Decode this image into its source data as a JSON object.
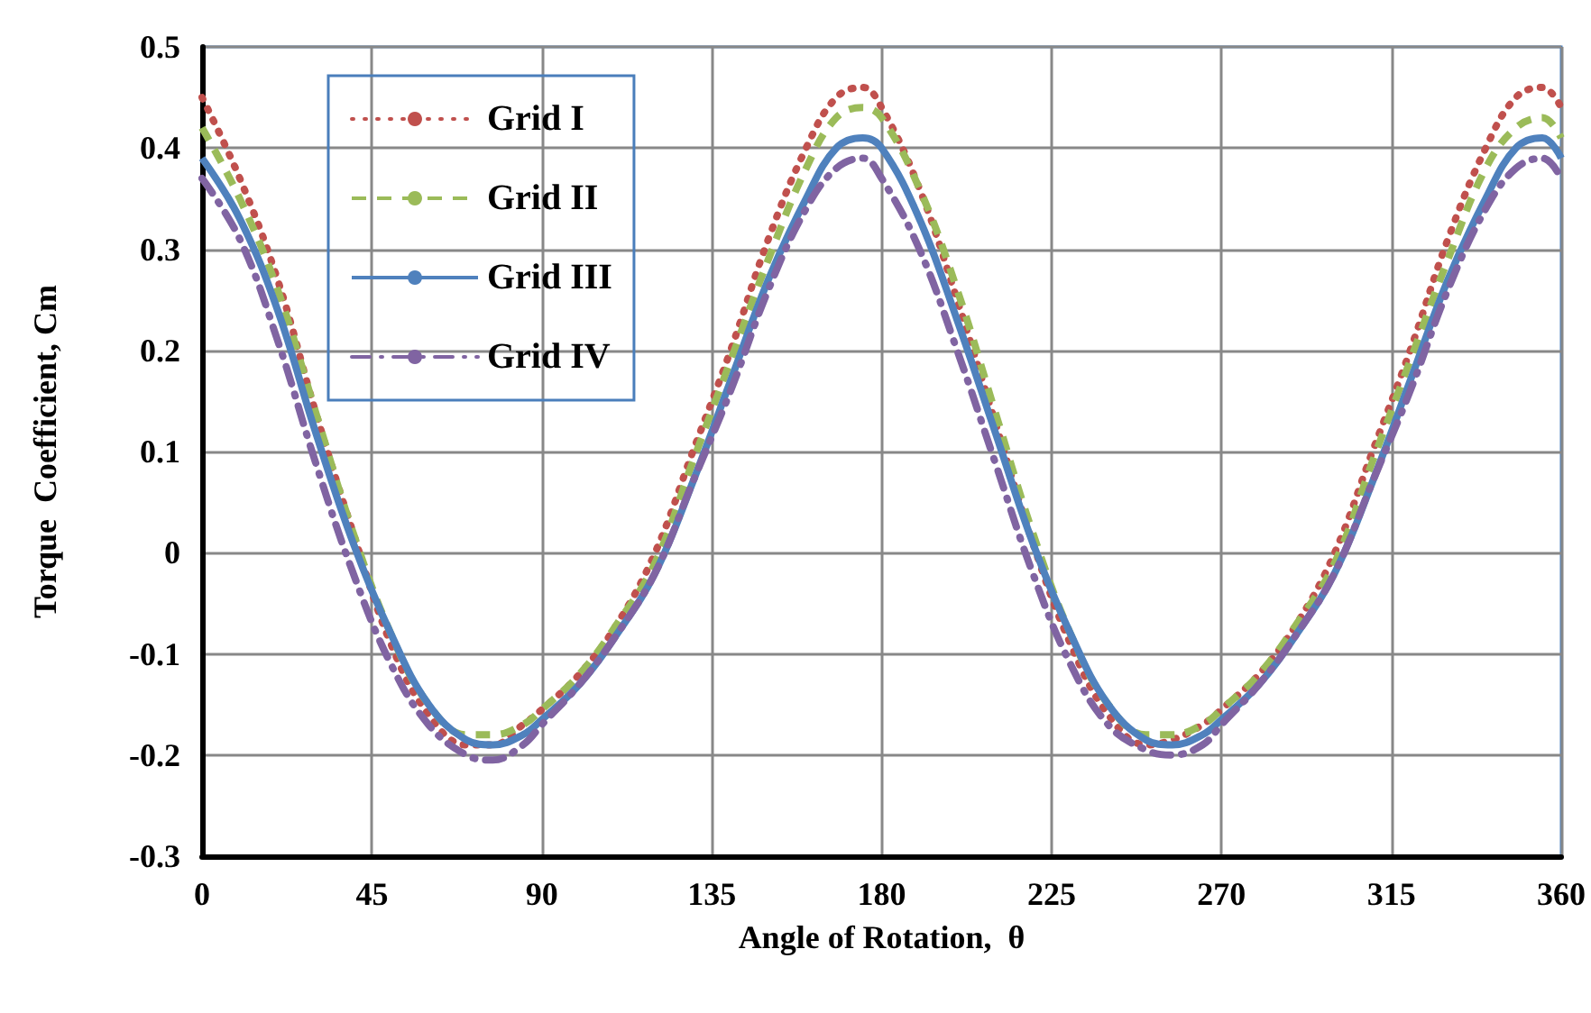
{
  "chart_data": {
    "type": "line",
    "xlabel": "Angle of Rotation,  θ",
    "ylabel": "Torque  Coefficient, Cm",
    "x": [
      0,
      10,
      20,
      30,
      40,
      50,
      60,
      70,
      77,
      85,
      90,
      100,
      110,
      120,
      130,
      140,
      150,
      160,
      168,
      175,
      180,
      190,
      200,
      210,
      220,
      230,
      240,
      250,
      257,
      265,
      270,
      280,
      290,
      300,
      310,
      320,
      330,
      340,
      348,
      355,
      360
    ],
    "series": [
      {
        "name": "Grid I",
        "color": "#c0504d",
        "line_style": "dotted",
        "values": [
          0.45,
          0.37,
          0.27,
          0.14,
          0.02,
          -0.09,
          -0.16,
          -0.19,
          -0.19,
          -0.17,
          -0.155,
          -0.12,
          -0.07,
          0.0,
          0.1,
          0.2,
          0.31,
          0.4,
          0.45,
          0.46,
          0.44,
          0.36,
          0.25,
          0.13,
          0.01,
          -0.09,
          -0.16,
          -0.19,
          -0.185,
          -0.17,
          -0.155,
          -0.12,
          -0.07,
          0.0,
          0.1,
          0.2,
          0.31,
          0.4,
          0.45,
          0.46,
          0.44
        ]
      },
      {
        "name": "Grid II",
        "color": "#9bbb59",
        "line_style": "dashed",
        "values": [
          0.42,
          0.35,
          0.26,
          0.14,
          0.02,
          -0.08,
          -0.15,
          -0.18,
          -0.18,
          -0.17,
          -0.155,
          -0.12,
          -0.07,
          -0.01,
          0.09,
          0.19,
          0.29,
          0.38,
          0.43,
          0.44,
          0.43,
          0.36,
          0.26,
          0.14,
          0.02,
          -0.08,
          -0.15,
          -0.18,
          -0.18,
          -0.17,
          -0.155,
          -0.12,
          -0.07,
          -0.01,
          0.09,
          0.19,
          0.29,
          0.38,
          0.42,
          0.43,
          0.41
        ]
      },
      {
        "name": "Grid III",
        "color": "#4f81bd",
        "line_style": "solid",
        "values": [
          0.39,
          0.33,
          0.24,
          0.12,
          0.01,
          -0.08,
          -0.15,
          -0.185,
          -0.19,
          -0.18,
          -0.165,
          -0.13,
          -0.08,
          -0.02,
          0.07,
          0.17,
          0.27,
          0.35,
          0.4,
          0.41,
          0.4,
          0.33,
          0.23,
          0.12,
          0.01,
          -0.08,
          -0.15,
          -0.185,
          -0.19,
          -0.18,
          -0.165,
          -0.13,
          -0.08,
          -0.02,
          0.07,
          0.17,
          0.27,
          0.35,
          0.4,
          0.41,
          0.39
        ]
      },
      {
        "name": "Grid IV",
        "color": "#8064a2",
        "line_style": "dashdot",
        "values": [
          0.37,
          0.31,
          0.21,
          0.09,
          -0.02,
          -0.11,
          -0.17,
          -0.2,
          -0.205,
          -0.19,
          -0.17,
          -0.13,
          -0.08,
          -0.02,
          0.07,
          0.16,
          0.26,
          0.34,
          0.38,
          0.39,
          0.37,
          0.3,
          0.2,
          0.09,
          -0.02,
          -0.11,
          -0.17,
          -0.195,
          -0.2,
          -0.19,
          -0.17,
          -0.13,
          -0.08,
          -0.02,
          0.07,
          0.16,
          0.26,
          0.34,
          0.38,
          0.39,
          0.37
        ]
      }
    ],
    "xlim": [
      0,
      360
    ],
    "xticks": [
      0,
      45,
      90,
      135,
      180,
      225,
      270,
      315,
      360
    ],
    "ylim": [
      -0.3,
      0.5
    ],
    "yticks": [
      -0.3,
      -0.2,
      -0.1,
      0,
      0.1,
      0.2,
      0.3,
      0.4,
      0.5
    ],
    "grid": true,
    "legend": "top left",
    "marker": "none"
  }
}
